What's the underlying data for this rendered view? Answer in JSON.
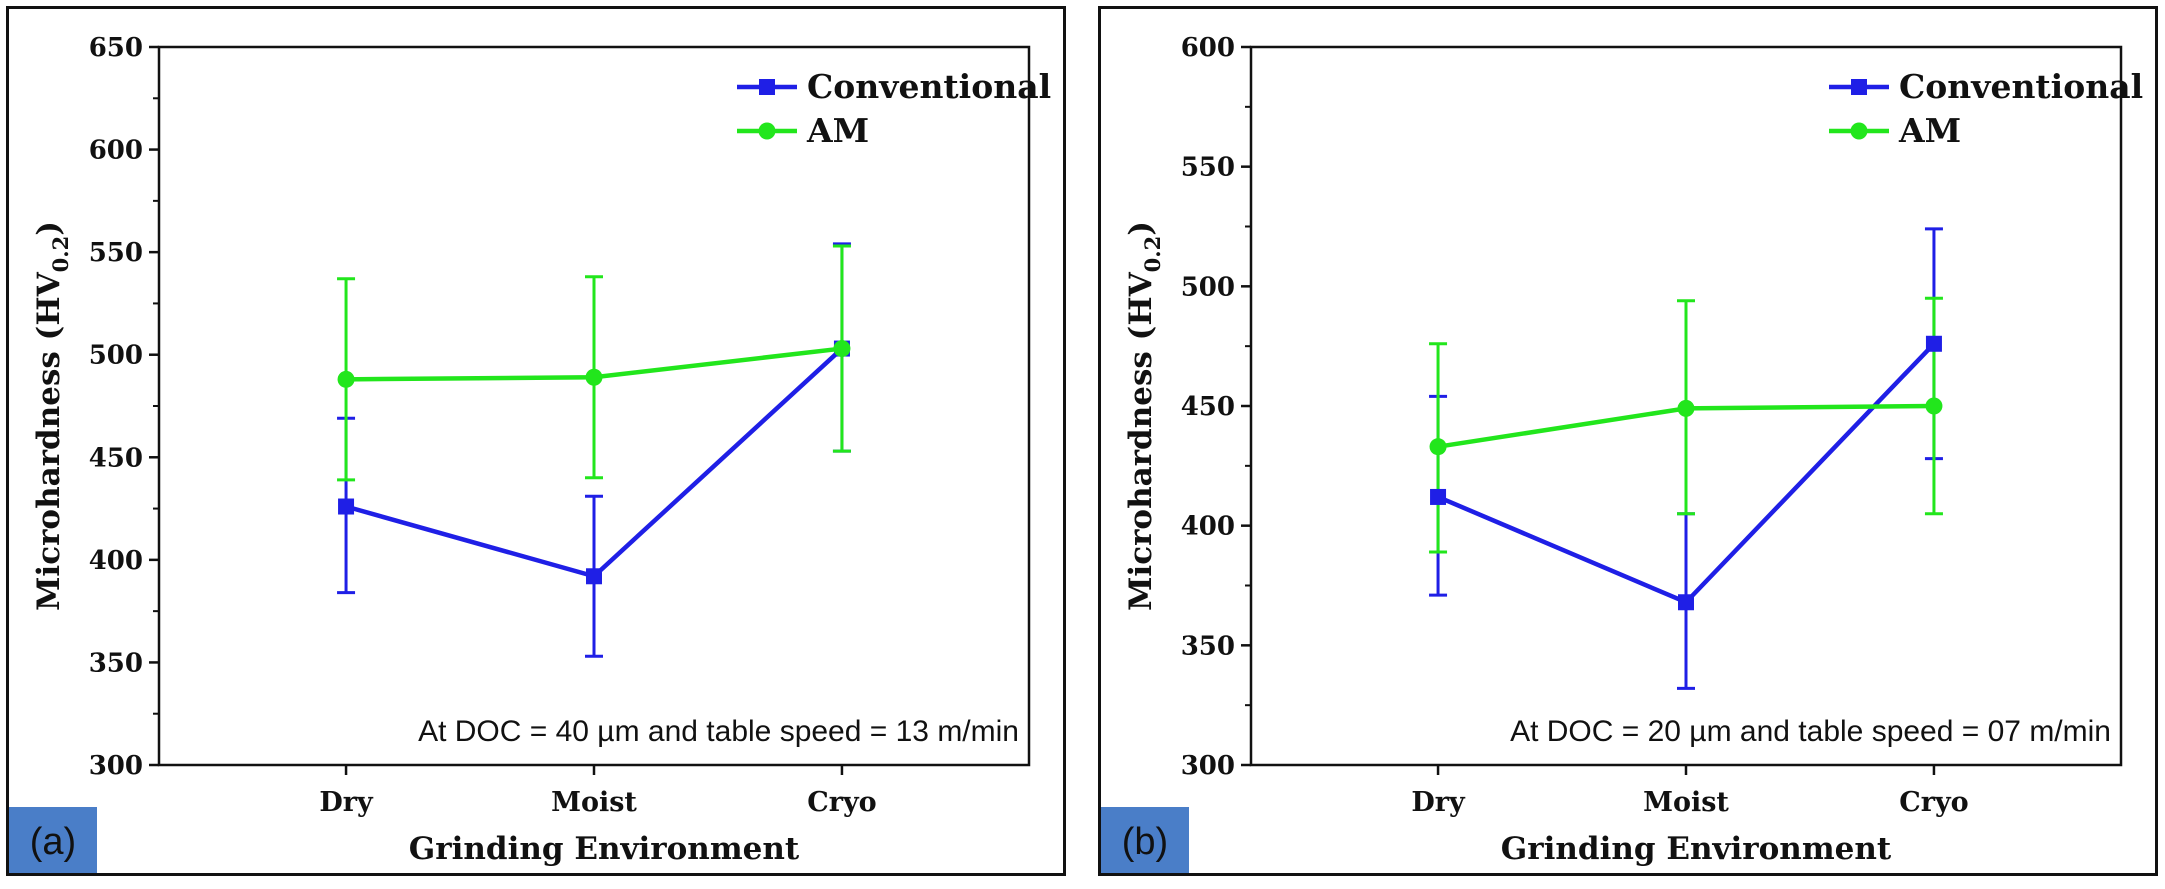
{
  "chart_data": [
    {
      "panel_label": "(a)",
      "type": "line",
      "xlabel": "Grinding Environment",
      "ylabel": "Microhardness (HV",
      "ylabel_sub": "0.2",
      "ylabel_close": ")",
      "categories": [
        "Dry",
        "Moist",
        "Cryo"
      ],
      "ylim": [
        300,
        650
      ],
      "yticks": [
        "300",
        "350",
        "400",
        "450",
        "500",
        "550",
        "600",
        "650"
      ],
      "annotation": "At DOC = 40 µm and table speed = 13 m/min",
      "legend": [
        "Conventional",
        "AM"
      ],
      "series": [
        {
          "name": "Conventional",
          "color": "#1f1fe6",
          "marker": "square",
          "values": [
            426,
            392,
            503
          ],
          "err_low": [
            384,
            353,
            453
          ],
          "err_high": [
            469,
            431,
            554
          ]
        },
        {
          "name": "AM",
          "color": "#22e61c",
          "marker": "circle",
          "values": [
            488,
            489,
            503
          ],
          "err_low": [
            439,
            440,
            453
          ],
          "err_high": [
            537,
            538,
            553
          ]
        }
      ]
    },
    {
      "panel_label": "(b)",
      "type": "line",
      "xlabel": "Grinding Environment",
      "ylabel": "Microhardness (HV",
      "ylabel_sub": "0.2",
      "ylabel_close": ")",
      "categories": [
        "Dry",
        "Moist",
        "Cryo"
      ],
      "ylim": [
        300,
        600
      ],
      "yticks": [
        "300",
        "350",
        "400",
        "450",
        "500",
        "550",
        "600"
      ],
      "annotation": "At DOC = 20 µm and table speed = 07 m/min",
      "legend": [
        "Conventional",
        "AM"
      ],
      "series": [
        {
          "name": "Conventional",
          "color": "#1f1fe6",
          "marker": "square",
          "values": [
            412,
            368,
            476
          ],
          "err_low": [
            371,
            332,
            428
          ],
          "err_high": [
            454,
            405,
            524
          ]
        },
        {
          "name": "AM",
          "color": "#22e61c",
          "marker": "circle",
          "values": [
            433,
            449,
            450
          ],
          "err_low": [
            389,
            405,
            405
          ],
          "err_high": [
            476,
            494,
            495
          ]
        }
      ]
    }
  ],
  "panel_tag_color": "#4a7ec8"
}
